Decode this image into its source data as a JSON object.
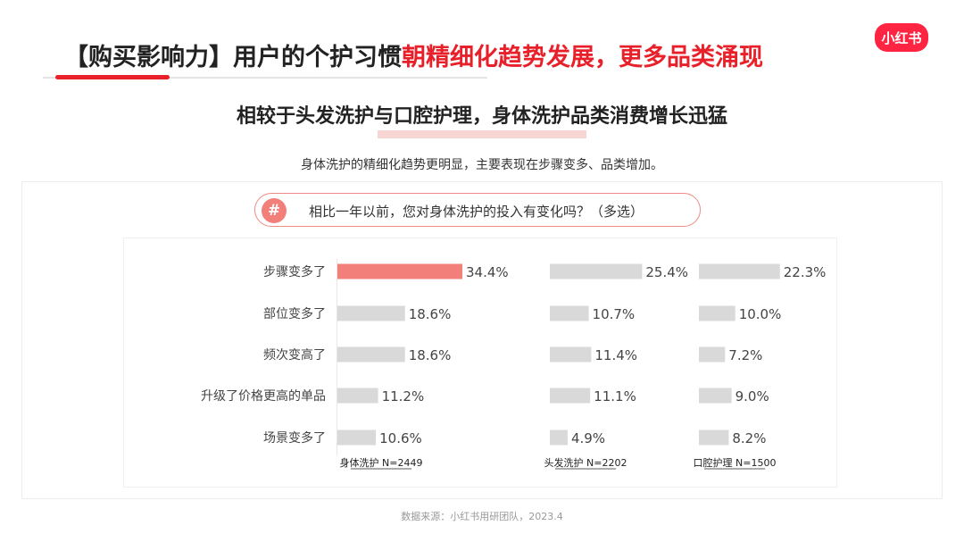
{
  "header": {
    "title_part1": "【购买影响力】用户的个护习惯",
    "title_part2": "朝精细化趋势发展，更多品类涌现",
    "logo_text": "小红书"
  },
  "subtitle": "相较于头发洗护与口腔护理，身体洗护品类消费增长迅猛",
  "description": "身体洗护的精细化趋势更明显，主要表现在步骤变多、品类增加。",
  "question": {
    "icon_label": "#",
    "text": "相比一年以前，您对身体洗护的投入有变化吗？（多选）"
  },
  "source": "数据来源：小红书用研团队，2023.4",
  "colors": {
    "accent": "#e8202a",
    "highlight_bar": "#f37f7a",
    "bar": "#d9d9d9",
    "logo": "#ff2442"
  },
  "chart_data": {
    "type": "bar",
    "orientation": "horizontal",
    "categories": [
      "步骤变多了",
      "部位变多了",
      "频次变高了",
      "升级了价格更高的单品",
      "场景变多了"
    ],
    "series": [
      {
        "name": "身体洗护 N=2449",
        "values": [
          34.4,
          18.6,
          18.6,
          11.2,
          10.6
        ],
        "labels": [
          "34.4%",
          "18.6%",
          "18.6%",
          "11.2%",
          "10.6%"
        ]
      },
      {
        "name": "头发洗护 N=2202",
        "values": [
          25.4,
          10.7,
          11.4,
          11.1,
          4.9
        ],
        "labels": [
          "25.4%",
          "10.7%",
          "11.4%",
          "11.1%",
          "4.9%"
        ]
      },
      {
        "name": "口腔护理 N=1500",
        "values": [
          22.3,
          10.0,
          7.2,
          9.0,
          8.2
        ],
        "labels": [
          "22.3%",
          "10.0%",
          "7.2%",
          "9.0%",
          "8.2%"
        ]
      }
    ],
    "highlight": {
      "series": 0,
      "category": 0
    },
    "xlim": [
      0,
      100
    ],
    "grid": false
  }
}
